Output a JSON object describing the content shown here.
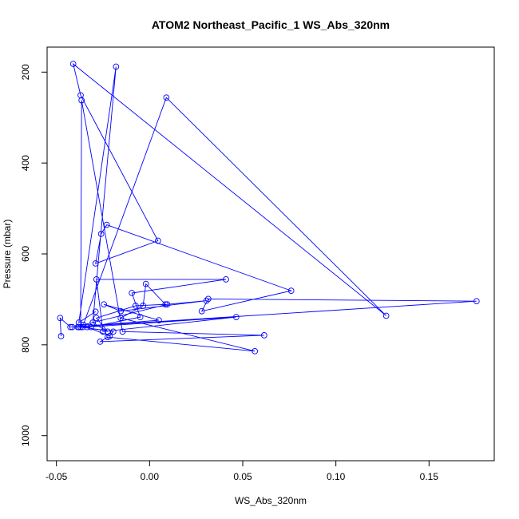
{
  "chart_data": {
    "type": "line",
    "title": "ATOM2 Northeast_Pacific_1 WS_Abs_320nm",
    "xlabel": "WS_Abs_320nm",
    "ylabel": "Pressure (mbar)",
    "xlim": [
      -0.055,
      0.185
    ],
    "ylim": [
      1055,
      145
    ],
    "y_reversed": true,
    "xticks": [
      -0.05,
      0.0,
      0.05,
      0.1,
      0.15
    ],
    "xtick_labels": [
      "-0.05",
      "0.00",
      "0.05",
      "0.10",
      "0.15"
    ],
    "yticks": [
      200,
      400,
      600,
      800,
      1000
    ],
    "ytick_labels": [
      "200",
      "400",
      "600",
      "800",
      "1000"
    ],
    "grid": false,
    "series": [
      {
        "color": "#0000ff",
        "marker": "open-circle",
        "x": [
          -0.0475,
          -0.048,
          -0.0425,
          -0.038,
          -0.036,
          0.009,
          0.127,
          -0.041,
          -0.037,
          0.0045,
          -0.029,
          -0.026,
          -0.023,
          0.076,
          0.028,
          0.0315,
          0.1755,
          -0.0415,
          0.005,
          -0.0245,
          -0.0155,
          0.0305,
          0.0095,
          -0.0355,
          -0.0385,
          -0.0315,
          -0.005,
          -0.0095,
          0.041,
          -0.0285,
          -0.025,
          0.0465,
          -0.0335,
          -0.0215,
          -0.0195,
          -0.037,
          -0.0365,
          -0.0145,
          0.0615,
          -0.0265,
          -0.0225,
          0.0565,
          -0.0155,
          -0.0035,
          -0.002,
          0.0085,
          -0.0075,
          -0.0285,
          -0.0225,
          -0.0305,
          -0.018,
          -0.038,
          -0.029
        ],
        "y": [
          781,
          741,
          761,
          761,
          761,
          256,
          736,
          182,
          251,
          571,
          621,
          556,
          536,
          681,
          726,
          699,
          704,
          761,
          746,
          711,
          726,
          703,
          711,
          756,
          761,
          761,
          739,
          686,
          656,
          656,
          771,
          739,
          761,
          781,
          771,
          761,
          262,
          771,
          779,
          793,
          783,
          814,
          741,
          714,
          666,
          711,
          714,
          741,
          771,
          751,
          188,
          751,
          727
        ]
      }
    ]
  }
}
